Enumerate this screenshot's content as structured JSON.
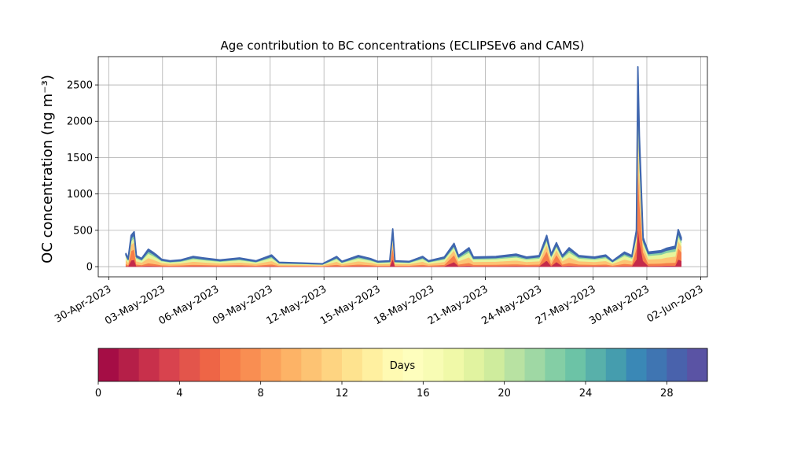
{
  "chart_data": {
    "type": "stackplot",
    "title": "Age contribution to BC concentrations (ECLIPSEv6 and CAMS)",
    "y_label": "OC concentration (ng m⁻³)",
    "x": [
      "2023-04-30T23:00",
      "2023-05-01T02:00",
      "2023-05-01T06:00",
      "2023-05-01T10:00",
      "2023-05-01T13:00",
      "2023-05-01T20:00",
      "2023-05-02T05:00",
      "2023-05-02T11:00",
      "2023-05-02T17:00",
      "2023-05-02T23:00",
      "2023-05-03T10:00",
      "2023-05-04T00:00",
      "2023-05-04T17:00",
      "2023-05-05T07:00",
      "2023-05-06T05:00",
      "2023-05-07T07:00",
      "2023-05-08T05:00",
      "2023-05-09T02:00",
      "2023-05-09T12:00",
      "2023-05-10T14:00",
      "2023-05-11T22:00",
      "2023-05-12T17:00",
      "2023-05-13T00:00",
      "2023-05-13T22:00",
      "2023-05-14T14:00",
      "2023-05-15T00:00",
      "2023-05-15T16:00",
      "2023-05-15T20:00",
      "2023-05-15T23:00",
      "2023-05-16T18:00",
      "2023-05-17T12:00",
      "2023-05-17T20:00",
      "2023-05-18T17:00",
      "2023-05-19T06:00",
      "2023-05-19T12:00",
      "2023-05-20T02:00",
      "2023-05-20T08:00",
      "2023-05-21T14:00",
      "2023-05-22T17:00",
      "2023-05-23T07:00",
      "2023-05-24T00:00",
      "2023-05-24T10:00",
      "2023-05-24T16:00",
      "2023-05-24T23:00",
      "2023-05-25T07:00",
      "2023-05-25T16:00",
      "2023-05-26T05:00",
      "2023-05-27T02:00",
      "2023-05-27T17:00",
      "2023-05-28T02:00",
      "2023-05-28T18:00",
      "2023-05-29T04:00",
      "2023-05-29T10:00",
      "2023-05-29T12:00",
      "2023-05-29T14:00",
      "2023-05-29T19:00",
      "2023-05-30T02:00",
      "2023-05-30T19:00",
      "2023-05-31T02:00",
      "2023-05-31T14:00",
      "2023-05-31T18:00",
      "2023-05-31T22:00"
    ],
    "series": [
      {
        "color": "#c42a4a",
        "values": [
          9,
          6,
          86,
          96,
          8,
          6,
          12,
          10,
          8,
          5,
          4,
          5,
          7,
          6,
          5,
          6,
          4,
          8,
          3,
          3,
          2,
          7,
          4,
          8,
          6,
          4,
          4,
          104,
          4,
          4,
          7,
          4,
          7,
          64,
          8,
          13,
          7,
          7,
          9,
          7,
          8,
          86,
          9,
          66,
          8,
          13,
          8,
          7,
          8,
          4,
          10,
          8,
          100,
          550,
          360,
          80,
          10,
          11,
          13,
          14,
          102,
          80
        ]
      },
      {
        "color": "#f67d4a",
        "values": [
          27,
          17,
          129,
          144,
          23,
          17,
          36,
          30,
          23,
          15,
          12,
          14,
          21,
          18,
          14,
          18,
          12,
          24,
          9,
          8,
          6,
          21,
          11,
          23,
          17,
          11,
          12,
          156,
          12,
          11,
          21,
          12,
          20,
          96,
          23,
          39,
          20,
          21,
          26,
          20,
          23,
          129,
          26,
          99,
          23,
          39,
          23,
          20,
          24,
          12,
          30,
          23,
          150,
          825,
          540,
          120,
          30,
          33,
          38,
          42,
          153,
          120
        ]
      },
      {
        "color": "#fdc373",
        "values": [
          54,
          33,
          86,
          96,
          45,
          33,
          72,
          60,
          45,
          30,
          24,
          27,
          42,
          36,
          27,
          36,
          24,
          48,
          18,
          15,
          12,
          42,
          21,
          45,
          33,
          21,
          24,
          104,
          24,
          21,
          42,
          24,
          39,
          64,
          45,
          78,
          39,
          42,
          51,
          39,
          45,
          86,
          51,
          66,
          45,
          78,
          45,
          39,
          48,
          24,
          60,
          45,
          100,
          550,
          360,
          80,
          60,
          66,
          75,
          84,
          102,
          80
        ]
      },
      {
        "color": "#e6f59d",
        "values": [
          45,
          28,
          52,
          58,
          38,
          28,
          60,
          50,
          38,
          25,
          20,
          23,
          35,
          30,
          23,
          30,
          20,
          40,
          15,
          13,
          10,
          35,
          18,
          38,
          28,
          18,
          20,
          62,
          20,
          18,
          35,
          20,
          33,
          38,
          38,
          65,
          33,
          35,
          43,
          33,
          38,
          52,
          43,
          40,
          38,
          65,
          38,
          33,
          40,
          20,
          50,
          38,
          60,
          330,
          216,
          48,
          50,
          55,
          63,
          70,
          61,
          48
        ]
      },
      {
        "color": "#86cfa5",
        "values": [
          27,
          17,
          43,
          48,
          23,
          17,
          36,
          30,
          23,
          15,
          12,
          14,
          21,
          18,
          14,
          18,
          12,
          24,
          9,
          8,
          6,
          21,
          11,
          23,
          17,
          11,
          12,
          52,
          12,
          11,
          21,
          12,
          20,
          32,
          23,
          39,
          20,
          21,
          26,
          20,
          23,
          43,
          26,
          33,
          23,
          39,
          23,
          20,
          24,
          12,
          30,
          23,
          50,
          275,
          180,
          40,
          30,
          33,
          38,
          42,
          51,
          40
        ]
      },
      {
        "color": "#3f66ae",
        "values": [
          18,
          11,
          34,
          38,
          15,
          11,
          24,
          20,
          15,
          10,
          8,
          9,
          14,
          12,
          9,
          12,
          8,
          16,
          6,
          5,
          4,
          14,
          7,
          15,
          11,
          7,
          8,
          42,
          8,
          7,
          14,
          8,
          13,
          26,
          15,
          26,
          13,
          14,
          17,
          13,
          15,
          34,
          17,
          26,
          15,
          26,
          15,
          13,
          16,
          8,
          20,
          15,
          40,
          220,
          144,
          32,
          20,
          22,
          25,
          28,
          41,
          32
        ]
      }
    ],
    "xlim": [
      "2023-04-29T10:00",
      "2023-06-02T09:00"
    ],
    "xticks": [
      {
        "value": "2023-04-30T00:00",
        "label": "30-Apr-2023"
      },
      {
        "value": "2023-05-03T00:00",
        "label": "03-May-2023"
      },
      {
        "value": "2023-05-06T00:00",
        "label": "06-May-2023"
      },
      {
        "value": "2023-05-09T00:00",
        "label": "09-May-2023"
      },
      {
        "value": "2023-05-12T00:00",
        "label": "12-May-2023"
      },
      {
        "value": "2023-05-15T00:00",
        "label": "15-May-2023"
      },
      {
        "value": "2023-05-18T00:00",
        "label": "18-May-2023"
      },
      {
        "value": "2023-05-21T00:00",
        "label": "21-May-2023"
      },
      {
        "value": "2023-05-24T00:00",
        "label": "24-May-2023"
      },
      {
        "value": "2023-05-27T00:00",
        "label": "27-May-2023"
      },
      {
        "value": "2023-05-30T00:00",
        "label": "30-May-2023"
      },
      {
        "value": "2023-06-02T00:00",
        "label": "02-Jun-2023"
      }
    ],
    "ylim": [
      -140,
      2890
    ],
    "yticks": [
      0,
      500,
      1000,
      1500,
      2000,
      2500
    ],
    "grid": true,
    "colorbar": {
      "label": "Days",
      "lim": [
        0,
        30
      ],
      "ticks": [
        0,
        4,
        8,
        12,
        16,
        20,
        24,
        28
      ],
      "colors": [
        "#a50d45",
        "#b51f48",
        "#c8304b",
        "#d8434e",
        "#e3554b",
        "#ee6546",
        "#f67d4a",
        "#f98e52",
        "#fba15b",
        "#fdb366",
        "#fdc373",
        "#fed481",
        "#fee38f",
        "#fff0a0",
        "#fffab2",
        "#fefebd",
        "#f8fcb4",
        "#f0f9a8",
        "#e1f3a0",
        "#cfec9d",
        "#b8e2a2",
        "#9fd8a4",
        "#84cea5",
        "#6cc3a6",
        "#58b0aa",
        "#459dae",
        "#3a88b6",
        "#3f75b2",
        "#4962ac",
        "#5a53a4"
      ]
    }
  }
}
